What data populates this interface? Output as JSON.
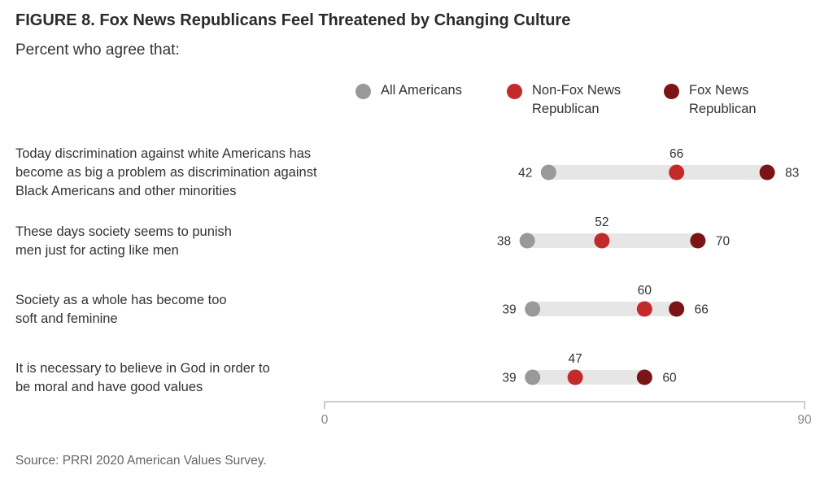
{
  "title": "FIGURE 8. Fox News Republicans Feel Threatened by Changing Culture",
  "subtitle": "Percent who agree that:",
  "source": "Source: PRRI 2020 American Values Survey.",
  "colors": {
    "all_americans": "#999999",
    "non_fox": "#c32a2a",
    "fox": "#7a1416",
    "track": "#e6e6e6",
    "axis": "#cccccc"
  },
  "legend": [
    {
      "label": "All Americans",
      "color": "#999999"
    },
    {
      "label": "Non-Fox News Republican",
      "color": "#c32a2a"
    },
    {
      "label": "Fox News Republican",
      "color": "#7a1416"
    }
  ],
  "chart_data": {
    "type": "dot-range",
    "xlim": [
      0,
      90
    ],
    "x_ticks": [
      0,
      90
    ],
    "grid": false,
    "legend_position": "top-right",
    "series": [
      {
        "name": "All Americans",
        "values": [
          42,
          38,
          39,
          39
        ]
      },
      {
        "name": "Non-Fox News Republican",
        "values": [
          66,
          52,
          60,
          47
        ]
      },
      {
        "name": "Fox News Republican",
        "values": [
          83,
          70,
          66,
          60
        ]
      }
    ],
    "categories": [
      "Today discrimination against white Americans has become as big a problem as discrimination against Black Americans and other minorities",
      "These days society seems to punish men just for acting like men",
      "Society as a whole has become too soft and feminine",
      "It is necessary to believe in God in order to be moral and have good values"
    ]
  }
}
